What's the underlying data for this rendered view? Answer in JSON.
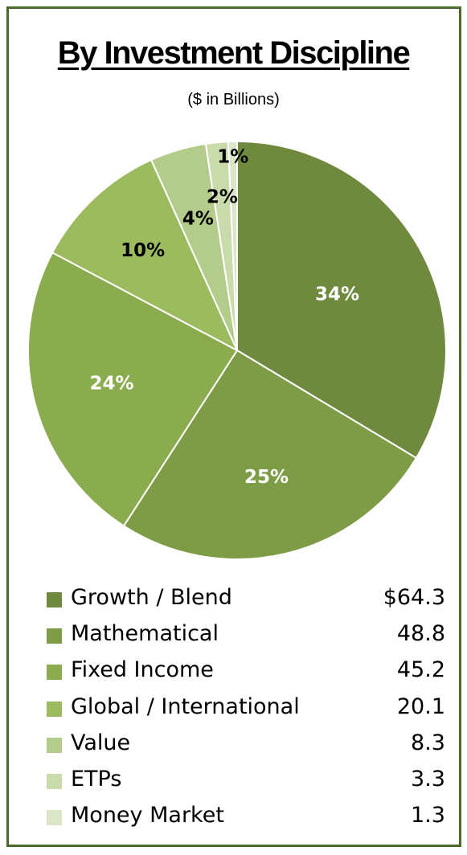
{
  "chart_data": {
    "type": "pie",
    "title": "By Investment Discipline",
    "subtitle": "($ in Billions)",
    "categories": [
      "Growth / Blend",
      "Mathematical",
      "Fixed Income",
      "Global / International",
      "Value",
      "ETPs",
      "Money Market"
    ],
    "values": [
      64.3,
      48.8,
      45.2,
      20.1,
      8.3,
      3.3,
      1.3
    ],
    "value_labels": [
      "$64.3",
      "48.8",
      "45.2",
      "20.1",
      "8.3",
      "3.3",
      "1.3"
    ],
    "percent_labels": [
      "34%",
      "25%",
      "24%",
      "10%",
      "4%",
      "2%",
      "1%"
    ],
    "colors": [
      "#6f8a3e",
      "#7e9c46",
      "#8aac4e",
      "#9cbb5e",
      "#b3cc8c",
      "#c9dbab",
      "#dbe6c8"
    ],
    "percent_label_colors": [
      "#ffffff",
      "#ffffff",
      "#ffffff",
      "#000000",
      "#000000",
      "#000000",
      "#000000"
    ],
    "legend_position": "bottom"
  }
}
